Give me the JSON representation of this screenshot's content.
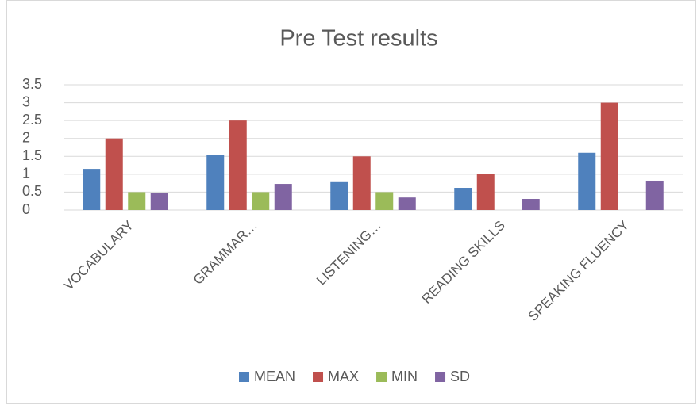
{
  "chart_data": {
    "type": "bar",
    "title": "Pre Test results",
    "categories": [
      "VOCABULARY",
      "GRAMMAR…",
      "LISTENING…",
      "READING SKILLS",
      "SPEAKING FLUENCY"
    ],
    "series": [
      {
        "name": "MEAN",
        "color": "#4f81bd",
        "values": [
          1.15,
          1.53,
          0.78,
          0.62,
          1.6
        ]
      },
      {
        "name": "MAX",
        "color": "#c0504d",
        "values": [
          2,
          2.5,
          1.5,
          1,
          3
        ]
      },
      {
        "name": "MIN",
        "color": "#9bbb59",
        "values": [
          0.5,
          0.5,
          0.5,
          0,
          0
        ]
      },
      {
        "name": "SD",
        "color": "#8064a2",
        "values": [
          0.47,
          0.73,
          0.35,
          0.31,
          0.82
        ]
      }
    ],
    "ylim": [
      0,
      3.5
    ],
    "yticks": [
      0,
      0.5,
      1,
      1.5,
      2,
      2.5,
      3,
      3.5
    ],
    "grid": true,
    "legend": "bottom"
  }
}
